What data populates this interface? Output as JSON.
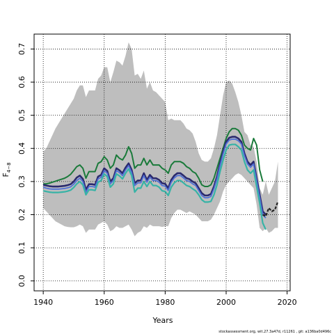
{
  "chart_data": {
    "type": "line",
    "xlabel": "Years",
    "ylabel": "F",
    "ylabel_subscript": "4−8",
    "xlim": [
      1937,
      2021
    ],
    "ylim": [
      -0.03,
      0.745
    ],
    "x_ticks": [
      1940,
      1960,
      1980,
      2000,
      2020
    ],
    "y_ticks": [
      0.0,
      0.1,
      0.2,
      0.3,
      0.4,
      0.5,
      0.6,
      0.7
    ],
    "grid": true,
    "grid_style": "dotted",
    "footer": "stockassessment.org, wit.27.3a47d, r11261 , git: a136ba0d496c",
    "colors": {
      "band": "#bebebe",
      "green": "#1a7a3a",
      "navy": "#2b2a6e",
      "blue": "#4f6fd6",
      "teal": "#37b3a6",
      "dashed": "#222222"
    },
    "band": {
      "x": [
        1940,
        1941,
        1942,
        1943,
        1944,
        1945,
        1946,
        1947,
        1948,
        1949,
        1950,
        1951,
        1952,
        1953,
        1954,
        1955,
        1956,
        1957,
        1958,
        1959,
        1960,
        1961,
        1962,
        1963,
        1964,
        1965,
        1966,
        1967,
        1968,
        1969,
        1970,
        1971,
        1972,
        1973,
        1974,
        1975,
        1976,
        1977,
        1978,
        1979,
        1980,
        1981,
        1982,
        1983,
        1984,
        1985,
        1986,
        1987,
        1988,
        1989,
        1990,
        1991,
        1992,
        1993,
        1994,
        1995,
        1996,
        1997,
        1998,
        1999,
        2000,
        2001,
        2002,
        2003,
        2004,
        2005,
        2006,
        2007,
        2008,
        2009,
        2010,
        2011,
        2012,
        2013,
        2014,
        2015,
        2016,
        2017
      ],
      "upper": [
        0.39,
        0.4,
        0.42,
        0.44,
        0.46,
        0.475,
        0.49,
        0.505,
        0.52,
        0.535,
        0.55,
        0.575,
        0.59,
        0.59,
        0.555,
        0.575,
        0.575,
        0.575,
        0.61,
        0.62,
        0.645,
        0.645,
        0.6,
        0.63,
        0.665,
        0.66,
        0.65,
        0.68,
        0.72,
        0.7,
        0.62,
        0.625,
        0.61,
        0.635,
        0.58,
        0.6,
        0.575,
        0.57,
        0.56,
        0.55,
        0.54,
        0.485,
        0.49,
        0.485,
        0.485,
        0.485,
        0.475,
        0.46,
        0.455,
        0.445,
        0.42,
        0.385,
        0.365,
        0.36,
        0.36,
        0.37,
        0.4,
        0.44,
        0.5,
        0.56,
        0.6,
        0.605,
        0.595,
        0.57,
        0.54,
        0.5,
        0.45,
        0.44,
        0.41,
        0.405,
        0.36,
        0.28,
        0.26,
        0.3,
        0.26,
        0.28,
        0.3,
        0.36
      ],
      "lower": [
        0.22,
        0.21,
        0.2,
        0.19,
        0.18,
        0.175,
        0.17,
        0.165,
        0.163,
        0.162,
        0.162,
        0.165,
        0.17,
        0.165,
        0.145,
        0.155,
        0.155,
        0.155,
        0.17,
        0.175,
        0.18,
        0.17,
        0.15,
        0.155,
        0.165,
        0.16,
        0.16,
        0.165,
        0.17,
        0.155,
        0.135,
        0.145,
        0.15,
        0.165,
        0.16,
        0.17,
        0.165,
        0.165,
        0.165,
        0.163,
        0.165,
        0.165,
        0.19,
        0.205,
        0.215,
        0.215,
        0.21,
        0.205,
        0.21,
        0.205,
        0.2,
        0.19,
        0.18,
        0.18,
        0.18,
        0.185,
        0.2,
        0.22,
        0.24,
        0.27,
        0.29,
        0.3,
        0.31,
        0.32,
        0.325,
        0.32,
        0.31,
        0.3,
        0.29,
        0.28,
        0.23,
        0.16,
        0.15,
        0.16,
        0.145,
        0.15,
        0.16,
        0.16
      ]
    },
    "series": [
      {
        "color_key": "green",
        "x": [
          1940,
          1941,
          1942,
          1943,
          1944,
          1945,
          1946,
          1947,
          1948,
          1949,
          1950,
          1951,
          1952,
          1953,
          1954,
          1955,
          1956,
          1957,
          1958,
          1959,
          1960,
          1961,
          1962,
          1963,
          1964,
          1965,
          1966,
          1967,
          1968,
          1969,
          1970,
          1971,
          1972,
          1973,
          1974,
          1975,
          1976,
          1977,
          1978,
          1979,
          1980,
          1981,
          1982,
          1983,
          1984,
          1985,
          1986,
          1987,
          1988,
          1989,
          1990,
          1991,
          1992,
          1993,
          1994,
          1995,
          1996,
          1997,
          1998,
          1999,
          2000,
          2001,
          2002,
          2003,
          2004,
          2005,
          2006,
          2007,
          2008,
          2009,
          2010,
          2011,
          2012
        ],
        "values": [
          0.293,
          0.293,
          0.295,
          0.298,
          0.301,
          0.304,
          0.307,
          0.31,
          0.315,
          0.322,
          0.333,
          0.345,
          0.35,
          0.34,
          0.31,
          0.33,
          0.33,
          0.33,
          0.355,
          0.36,
          0.375,
          0.365,
          0.34,
          0.35,
          0.38,
          0.37,
          0.365,
          0.38,
          0.405,
          0.385,
          0.34,
          0.35,
          0.35,
          0.37,
          0.35,
          0.365,
          0.35,
          0.35,
          0.35,
          0.34,
          0.335,
          0.325,
          0.35,
          0.36,
          0.36,
          0.36,
          0.355,
          0.345,
          0.34,
          0.33,
          0.325,
          0.31,
          0.29,
          0.285,
          0.285,
          0.29,
          0.31,
          0.34,
          0.37,
          0.4,
          0.43,
          0.45,
          0.46,
          0.46,
          0.455,
          0.44,
          0.41,
          0.4,
          0.395,
          0.43,
          0.41,
          0.335,
          0.3
        ],
        "width": 2,
        "dashed": false
      },
      {
        "color_key": "navy",
        "x": [
          1940,
          1941,
          1942,
          1943,
          1944,
          1945,
          1946,
          1947,
          1948,
          1949,
          1950,
          1951,
          1952,
          1953,
          1954,
          1955,
          1956,
          1957,
          1958,
          1959,
          1960,
          1961,
          1962,
          1963,
          1964,
          1965,
          1966,
          1967,
          1968,
          1969,
          1970,
          1971,
          1972,
          1973,
          1974,
          1975,
          1976,
          1977,
          1978,
          1979,
          1980,
          1981,
          1982,
          1983,
          1984,
          1985,
          1986,
          1987,
          1988,
          1989,
          1990,
          1991,
          1992,
          1993,
          1994,
          1995,
          1996,
          1997,
          1998,
          1999,
          2000,
          2001,
          2002,
          2003,
          2004,
          2005,
          2006,
          2007,
          2008,
          2009,
          2010,
          2011,
          2012,
          2013
        ],
        "values": [
          0.29,
          0.288,
          0.286,
          0.285,
          0.285,
          0.285,
          0.286,
          0.287,
          0.289,
          0.292,
          0.3,
          0.312,
          0.318,
          0.308,
          0.275,
          0.292,
          0.292,
          0.29,
          0.315,
          0.32,
          0.34,
          0.332,
          0.3,
          0.31,
          0.34,
          0.334,
          0.325,
          0.342,
          0.355,
          0.335,
          0.295,
          0.303,
          0.303,
          0.325,
          0.305,
          0.32,
          0.31,
          0.31,
          0.305,
          0.295,
          0.293,
          0.28,
          0.305,
          0.318,
          0.325,
          0.325,
          0.318,
          0.31,
          0.307,
          0.3,
          0.295,
          0.28,
          0.265,
          0.258,
          0.258,
          0.262,
          0.285,
          0.315,
          0.355,
          0.39,
          0.42,
          0.432,
          0.435,
          0.435,
          0.43,
          0.42,
          0.385,
          0.36,
          0.35,
          0.36,
          0.31,
          0.26,
          0.21,
          0.2
        ],
        "width": 2.6,
        "dashed": false
      },
      {
        "color_key": "blue",
        "x": [
          1940,
          1941,
          1942,
          1943,
          1944,
          1945,
          1946,
          1947,
          1948,
          1949,
          1950,
          1951,
          1952,
          1953,
          1954,
          1955,
          1956,
          1957,
          1958,
          1959,
          1960,
          1961,
          1962,
          1963,
          1964,
          1965,
          1966,
          1967,
          1968,
          1969,
          1970,
          1971,
          1972,
          1973,
          1974,
          1975,
          1976,
          1977,
          1978,
          1979,
          1980,
          1981,
          1982,
          1983,
          1984,
          1985,
          1986,
          1987,
          1988,
          1989,
          1990,
          1991,
          1992,
          1993,
          1994,
          1995,
          1996,
          1997,
          1998,
          1999,
          2000,
          2001,
          2002,
          2003,
          2004,
          2005,
          2006,
          2007,
          2008,
          2009,
          2010,
          2011,
          2012,
          2013
        ],
        "values": [
          0.283,
          0.28,
          0.278,
          0.277,
          0.277,
          0.277,
          0.278,
          0.279,
          0.281,
          0.284,
          0.292,
          0.303,
          0.31,
          0.3,
          0.268,
          0.285,
          0.285,
          0.283,
          0.308,
          0.313,
          0.333,
          0.325,
          0.293,
          0.303,
          0.333,
          0.327,
          0.318,
          0.335,
          0.348,
          0.328,
          0.288,
          0.296,
          0.296,
          0.318,
          0.298,
          0.313,
          0.303,
          0.303,
          0.298,
          0.288,
          0.286,
          0.273,
          0.298,
          0.311,
          0.318,
          0.318,
          0.311,
          0.303,
          0.3,
          0.293,
          0.288,
          0.273,
          0.258,
          0.251,
          0.251,
          0.255,
          0.278,
          0.308,
          0.348,
          0.383,
          0.413,
          0.425,
          0.428,
          0.428,
          0.423,
          0.413,
          0.378,
          0.353,
          0.343,
          0.353,
          0.303,
          0.253,
          0.2,
          0.19
        ],
        "width": 1.8,
        "dashed": false
      },
      {
        "color_key": "teal",
        "x": [
          1940,
          1941,
          1942,
          1943,
          1944,
          1945,
          1946,
          1947,
          1948,
          1949,
          1950,
          1951,
          1952,
          1953,
          1954,
          1955,
          1956,
          1957,
          1958,
          1959,
          1960,
          1961,
          1962,
          1963,
          1964,
          1965,
          1966,
          1967,
          1968,
          1969,
          1970,
          1971,
          1972,
          1973,
          1974,
          1975,
          1976,
          1977,
          1978,
          1979,
          1980,
          1981,
          1982,
          1983,
          1984,
          1985,
          1986,
          1987,
          1988,
          1989,
          1990,
          1991,
          1992,
          1993,
          1994,
          1995,
          1996,
          1997,
          1998,
          1999,
          2000,
          2001,
          2002,
          2003,
          2004,
          2005,
          2006,
          2007,
          2008,
          2009,
          2010,
          2011,
          2012,
          2013
        ],
        "values": [
          0.272,
          0.27,
          0.268,
          0.267,
          0.267,
          0.267,
          0.268,
          0.269,
          0.271,
          0.274,
          0.282,
          0.293,
          0.3,
          0.29,
          0.26,
          0.275,
          0.275,
          0.273,
          0.298,
          0.303,
          0.323,
          0.315,
          0.283,
          0.293,
          0.323,
          0.317,
          0.308,
          0.325,
          0.338,
          0.318,
          0.268,
          0.28,
          0.28,
          0.3,
          0.285,
          0.3,
          0.288,
          0.288,
          0.283,
          0.272,
          0.27,
          0.258,
          0.283,
          0.296,
          0.303,
          0.303,
          0.296,
          0.288,
          0.285,
          0.278,
          0.272,
          0.26,
          0.245,
          0.238,
          0.238,
          0.24,
          0.26,
          0.29,
          0.33,
          0.365,
          0.395,
          0.41,
          0.412,
          0.412,
          0.405,
          0.395,
          0.36,
          0.335,
          0.325,
          0.335,
          0.285,
          0.235,
          0.175,
          0.155
        ],
        "width": 2.2,
        "dashed": false
      },
      {
        "color_key": "dashed",
        "x": [
          2012,
          2013,
          2014,
          2015,
          2016,
          2017
        ],
        "values": [
          0.2,
          0.195,
          0.22,
          0.21,
          0.215,
          0.24
        ],
        "width": 2.2,
        "dashed": true
      }
    ]
  }
}
